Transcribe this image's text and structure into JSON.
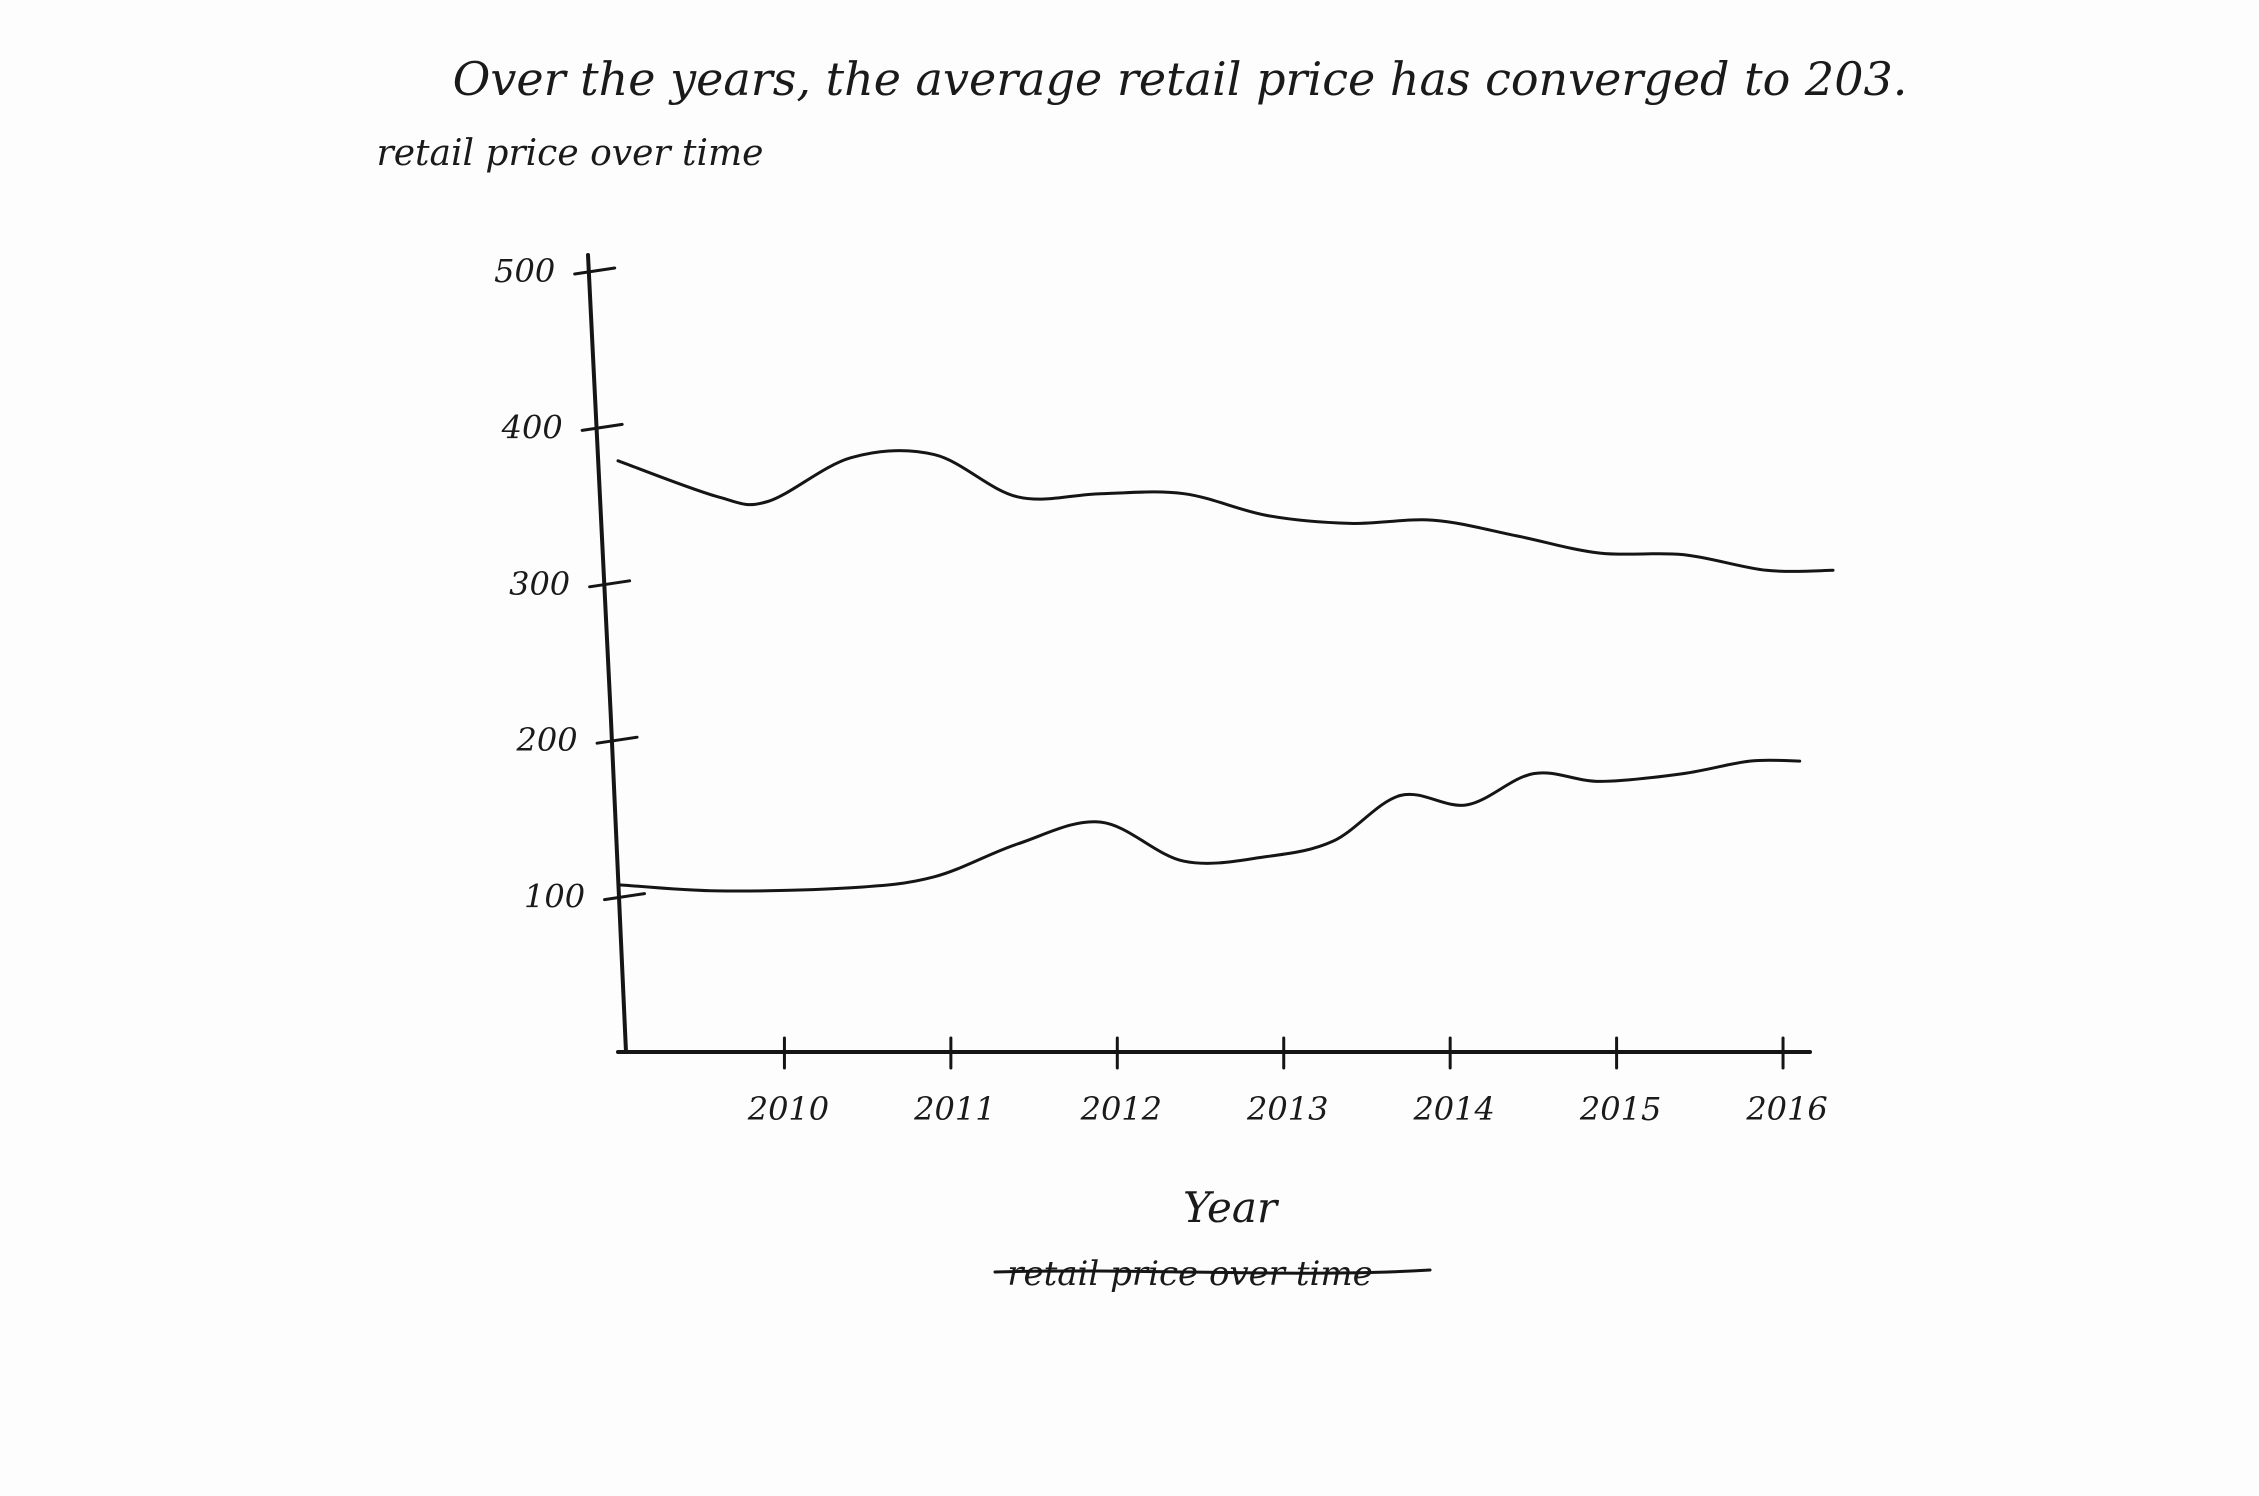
{
  "chart_data": {
    "type": "line",
    "title": "Over the years, the average retail price has converged to 203.",
    "ylabel": "retail price over time",
    "xlabel": "Year",
    "xlabel_struck": "retail price over time",
    "x": [
      2009,
      2010,
      2011,
      2012,
      2013,
      2014,
      2015,
      2016
    ],
    "x_ticks": [
      "2010",
      "2011",
      "2012",
      "2013",
      "2014",
      "2015",
      "2016"
    ],
    "y_ticks": [
      "100",
      "200",
      "300",
      "400",
      "500"
    ],
    "ylim": [
      0,
      500
    ],
    "grid": false,
    "legend": "none",
    "series": [
      {
        "x": [
          2009.0,
          2009.6,
          2009.9,
          2010.4,
          2010.9,
          2011.4,
          2011.9,
          2012.4,
          2012.9,
          2013.4,
          2013.9,
          2014.4,
          2014.9,
          2015.4,
          2015.9,
          2016.3
        ],
        "values": [
          378,
          355,
          352,
          380,
          382,
          355,
          357,
          357,
          343,
          338,
          340,
          330,
          319,
          318,
          308,
          308
        ]
      },
      {
        "x": [
          2009.0,
          2009.6,
          2010.4,
          2010.9,
          2011.4,
          2011.9,
          2012.4,
          2012.9,
          2013.3,
          2013.7,
          2014.1,
          2014.5,
          2014.9,
          2015.4,
          2015.8,
          2016.1
        ],
        "values": [
          107,
          103,
          105,
          112,
          133,
          147,
          122,
          125,
          135,
          164,
          158,
          178,
          173,
          178,
          186,
          186
        ]
      }
    ],
    "colors": {
      "ink": "#151515",
      "paper": "#fdfdfd"
    }
  }
}
